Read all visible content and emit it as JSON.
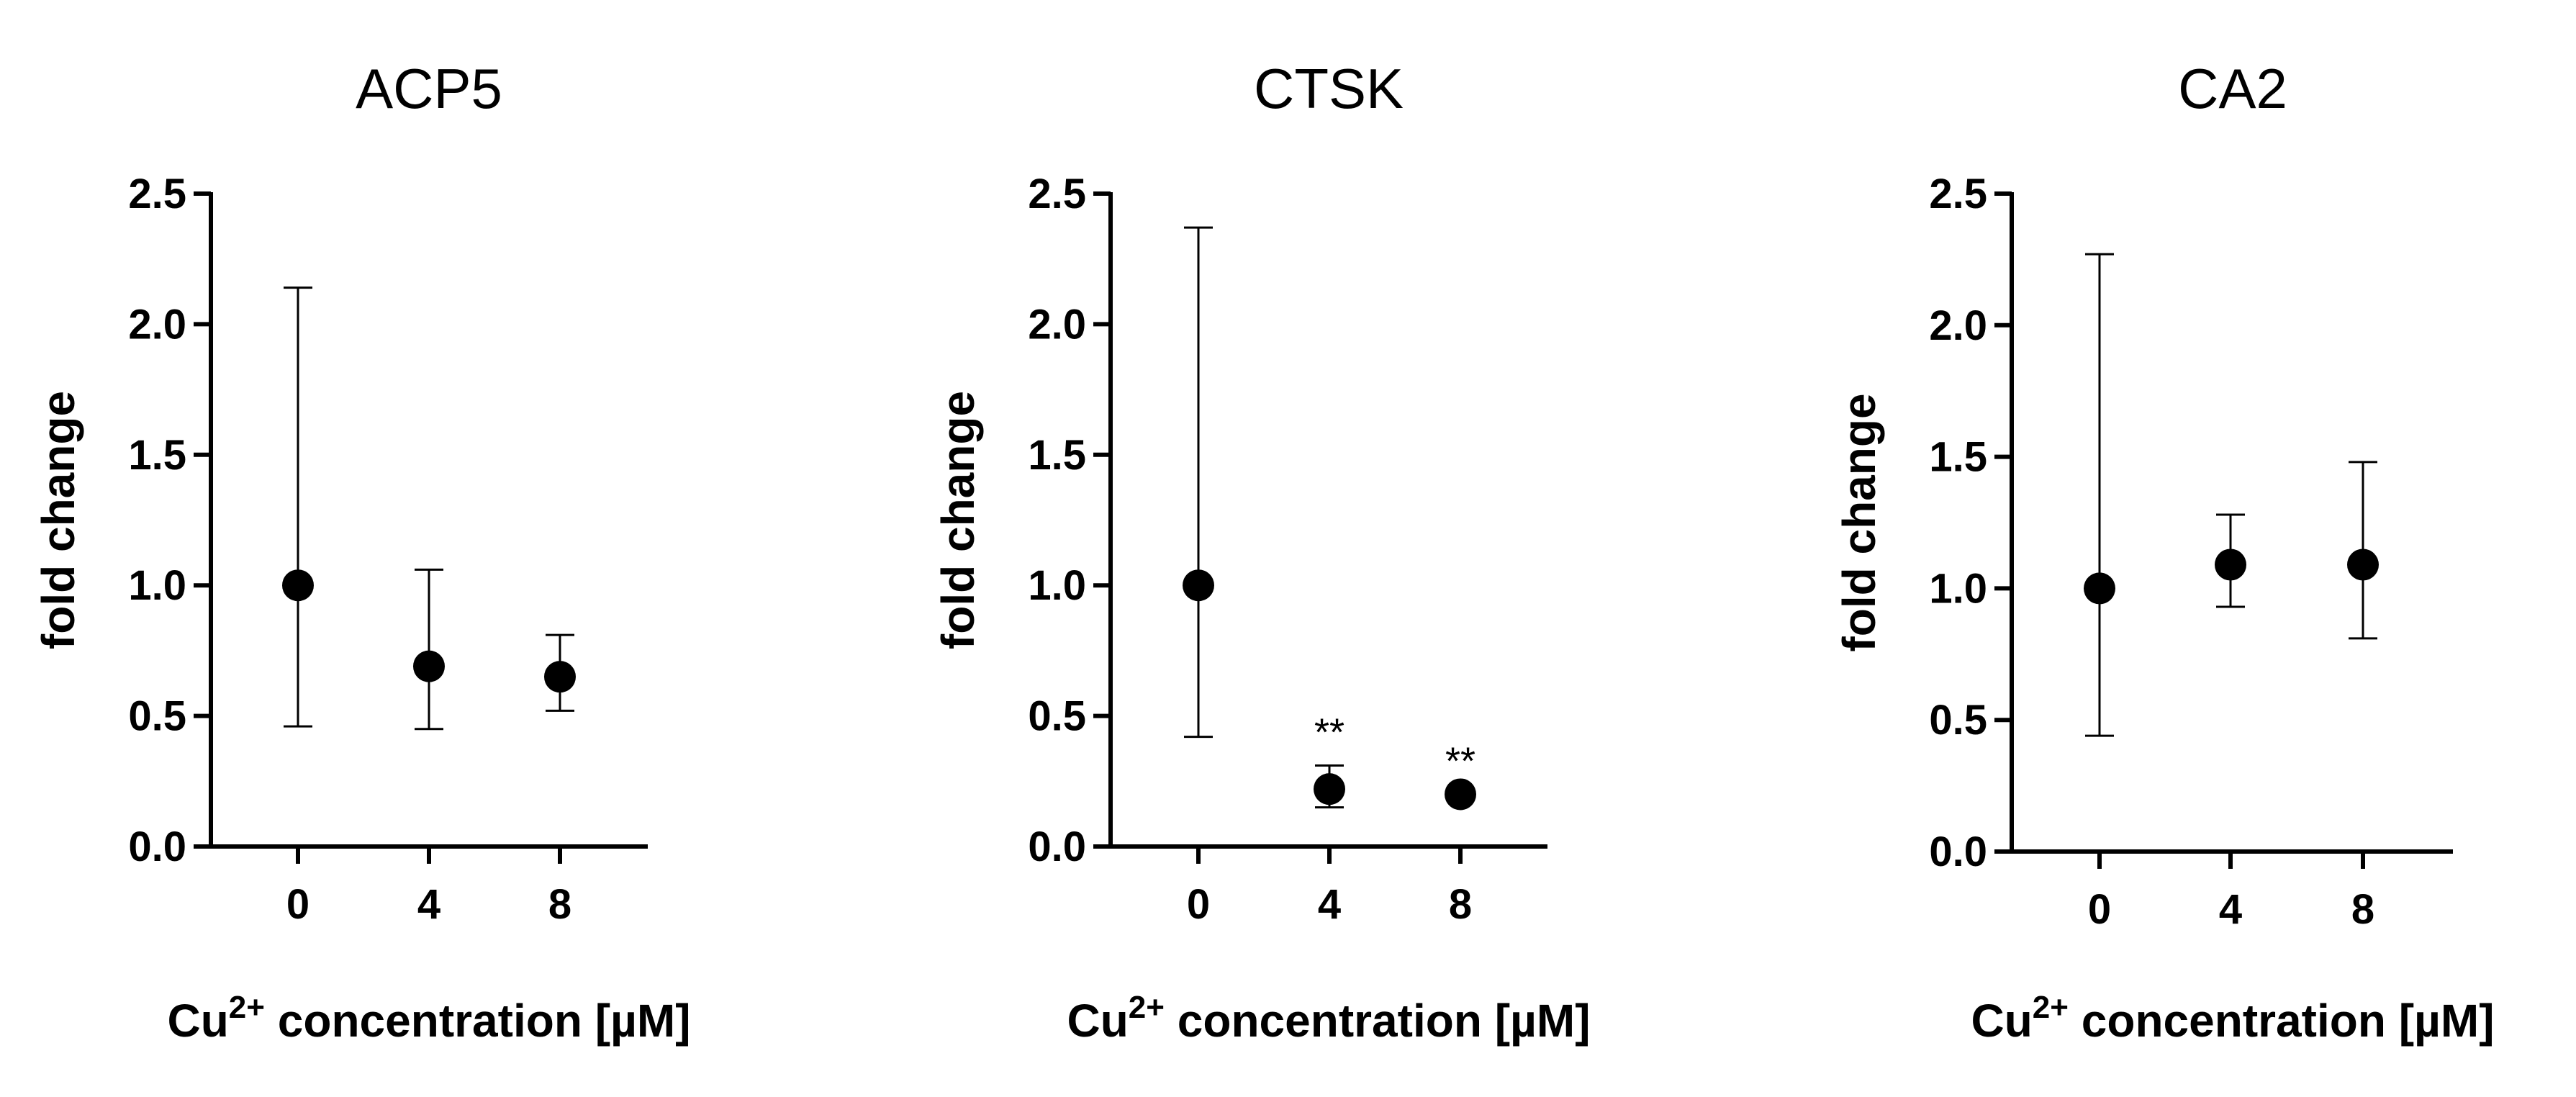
{
  "chart_data": [
    {
      "type": "scatter",
      "title": "ACP5",
      "xlabel": "Cu2+ concentration [µM]",
      "ylabel": "fold change",
      "categories": [
        "0",
        "4",
        "8"
      ],
      "ylim": [
        0.0,
        2.5
      ],
      "yticks": [
        "0.0",
        "0.5",
        "1.0",
        "1.5",
        "2.0",
        "2.5"
      ],
      "series": [
        {
          "values": [
            1.0,
            0.69,
            0.65
          ],
          "err_low": [
            0.46,
            0.45,
            0.52
          ],
          "err_high": [
            2.14,
            1.06,
            0.81
          ],
          "annotations": [
            "",
            "",
            ""
          ]
        }
      ]
    },
    {
      "type": "scatter",
      "title": "CTSK",
      "xlabel": "Cu2+ concentration [µM]",
      "ylabel": "fold change",
      "categories": [
        "0",
        "4",
        "8"
      ],
      "ylim": [
        0.0,
        2.5
      ],
      "yticks": [
        "0.0",
        "0.5",
        "1.0",
        "1.5",
        "2.0",
        "2.5"
      ],
      "series": [
        {
          "values": [
            1.0,
            0.22,
            0.2
          ],
          "err_low": [
            0.42,
            0.15,
            0.2
          ],
          "err_high": [
            2.37,
            0.31,
            0.2
          ],
          "annotations": [
            "",
            "**",
            "**"
          ]
        }
      ]
    },
    {
      "type": "scatter",
      "title": "CA2",
      "xlabel": "Cu2+ concentration [µM]",
      "ylabel": "fold change",
      "categories": [
        "0",
        "4",
        "8"
      ],
      "ylim": [
        0.0,
        2.5
      ],
      "yticks": [
        "0.0",
        "0.5",
        "1.0",
        "1.5",
        "2.0",
        "2.5"
      ],
      "series": [
        {
          "values": [
            1.0,
            1.09,
            1.09
          ],
          "err_low": [
            0.44,
            0.93,
            0.81
          ],
          "err_high": [
            2.27,
            1.28,
            1.48
          ],
          "annotations": [
            "",
            "",
            ""
          ]
        }
      ]
    }
  ],
  "colors": {
    "marker": "#000000",
    "axis": "#000000",
    "background": "#ffffff"
  }
}
